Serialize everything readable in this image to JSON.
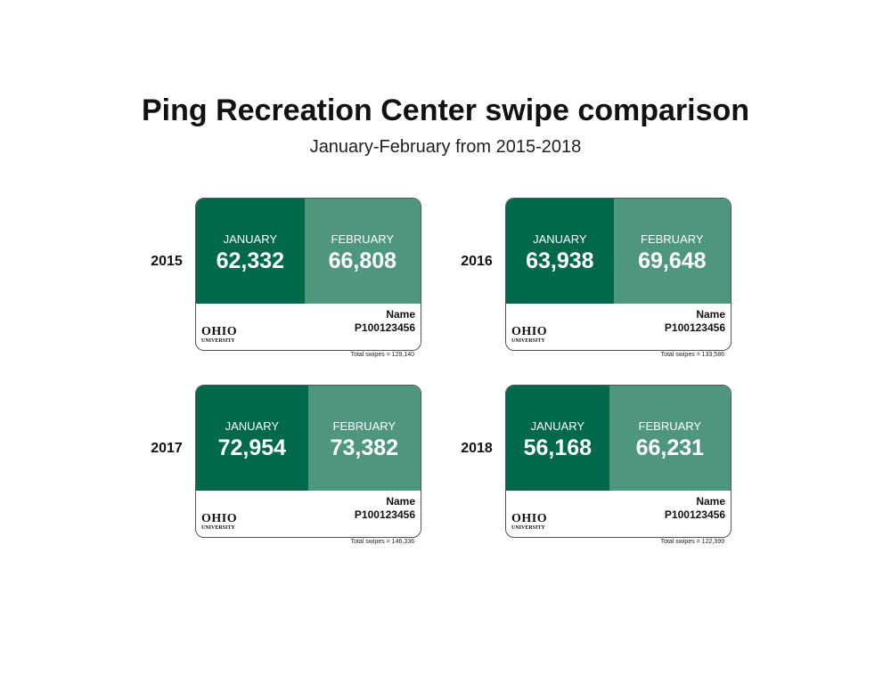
{
  "header": {
    "title": "Ping Recreation Center swipe comparison",
    "subtitle": "January-February from 2015-2018"
  },
  "cards": [
    {
      "year": "2015",
      "months": [
        {
          "label": "JANUARY",
          "value": "62,332"
        },
        {
          "label": "FEBRUARY",
          "value": "66,808"
        }
      ],
      "name": "Name",
      "id": "P100123456",
      "logo": [
        "OHIO",
        "UNIVERSITY"
      ],
      "total": "Total swipes = 129,140"
    },
    {
      "year": "2016",
      "months": [
        {
          "label": "JANUARY",
          "value": "63,938"
        },
        {
          "label": "FEBRUARY",
          "value": "69,648"
        }
      ],
      "name": "Name",
      "id": "P100123456",
      "logo": [
        "OHIO",
        "UNIVERSITY"
      ],
      "total": "Total swipes = 133,586"
    },
    {
      "year": "2017",
      "months": [
        {
          "label": "JANUARY",
          "value": "72,954"
        },
        {
          "label": "FEBRUARY",
          "value": "73,382"
        }
      ],
      "name": "Name",
      "id": "P100123456",
      "logo": [
        "OHIO",
        "UNIVERSITY"
      ],
      "total": "Total swipes = 146,336"
    },
    {
      "year": "2018",
      "months": [
        {
          "label": "JANUARY",
          "value": "56,168"
        },
        {
          "label": "FEBRUARY",
          "value": "66,231"
        }
      ],
      "name": "Name",
      "id": "P100123456",
      "logo": [
        "OHIO",
        "UNIVERSITY"
      ],
      "total": "Total swipes = 122,399"
    }
  ]
}
